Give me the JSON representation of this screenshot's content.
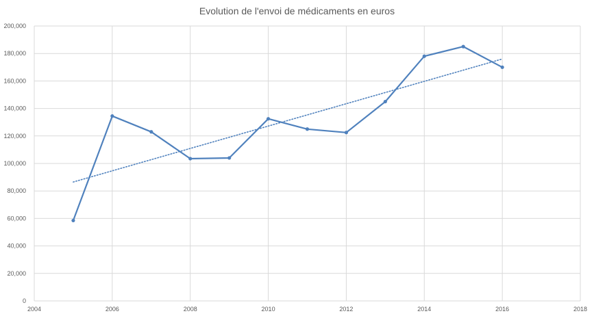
{
  "chart_data": {
    "type": "scatter",
    "title": "Evolution de l'envoi de médicaments en euros",
    "xlabel": "",
    "ylabel": "",
    "xlim": [
      2004,
      2018
    ],
    "ylim": [
      0,
      200000
    ],
    "xticks": [
      2004,
      2006,
      2008,
      2010,
      2012,
      2014,
      2016,
      2018
    ],
    "yticks": [
      0,
      20000,
      40000,
      60000,
      80000,
      100000,
      120000,
      140000,
      160000,
      180000,
      200000
    ],
    "xtick_labels": [
      "2004",
      "2006",
      "2008",
      "2010",
      "2012",
      "2014",
      "2016",
      "2018"
    ],
    "ytick_labels": [
      "0",
      "20,000",
      "40,000",
      "60,000",
      "80,000",
      "100,000",
      "120,000",
      "140,000",
      "160,000",
      "180,000",
      "200,000"
    ],
    "grid": true,
    "legend": "none",
    "series": [
      {
        "style": "line-with-markers",
        "color": "#4f81bd",
        "x": [
          2005,
          2006,
          2007,
          2008,
          2009,
          2010,
          2011,
          2012,
          2013,
          2014,
          2015,
          2016
        ],
        "y": [
          58500,
          134500,
          123000,
          103500,
          104000,
          132500,
          125000,
          122500,
          145000,
          178000,
          185000,
          170000
        ]
      }
    ],
    "trendline": {
      "type": "linear",
      "style": "dotted",
      "color": "#4f81bd",
      "x": [
        2005,
        2016
      ],
      "y": [
        86500,
        176000
      ]
    }
  }
}
